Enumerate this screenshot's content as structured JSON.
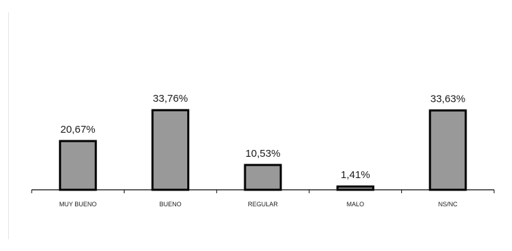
{
  "colors": {
    "bar_fill": "#999999",
    "bar_stroke": "#000000",
    "axis": "#000000",
    "text": "#1a1a1a"
  },
  "chart_data": {
    "type": "bar",
    "title": "",
    "xlabel": "",
    "ylabel": "",
    "categories": [
      "MUY BUENO",
      "BUENO",
      "REGULAR",
      "MALO",
      "NS/NC"
    ],
    "values": [
      20.67,
      33.76,
      10.53,
      1.41,
      33.63
    ],
    "data_labels": [
      "20,67%",
      "33,76%",
      "10,53%",
      "1,41%",
      "33,63%"
    ],
    "ylim": [
      0,
      40
    ],
    "grid": false,
    "legend": "none"
  }
}
